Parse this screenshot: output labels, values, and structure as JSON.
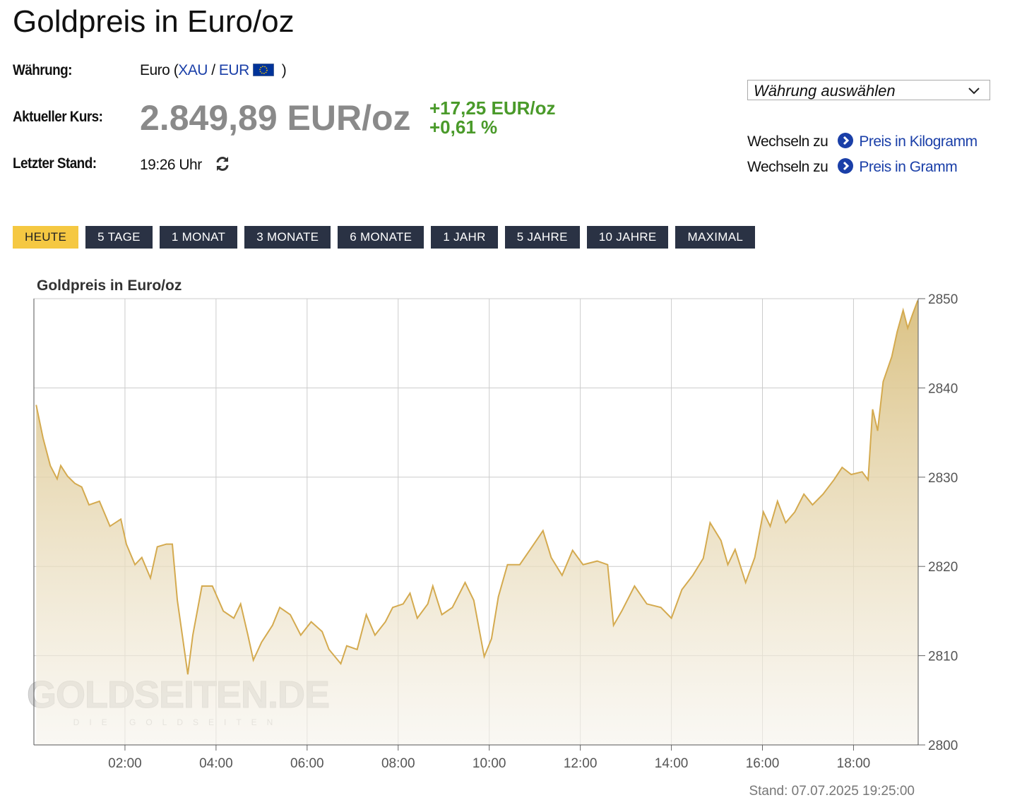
{
  "header": {
    "title": "Goldpreis in Euro/oz"
  },
  "info": {
    "currency_label": "Währung:",
    "currency_name": "Euro",
    "paren_open": "(",
    "currency_base": "XAU",
    "separator": "/",
    "currency_quote": "EUR",
    "paren_close": ")",
    "price_label": "Aktueller Kurs:",
    "price": "2.849,89 EUR/oz",
    "change_abs": "+17,25 EUR/oz",
    "change_pct": "+0,61 %",
    "time_label": "Letzter Stand:",
    "time": "19:26 Uhr"
  },
  "side": {
    "select": "Währung auswählen",
    "switch": [
      {
        "prefix": "Wechseln zu",
        "link": "Preis in Kilogramm"
      },
      {
        "prefix": "Wechseln zu",
        "link": "Preis in Gramm"
      }
    ]
  },
  "tabs": [
    "HEUTE",
    "5 TAGE",
    "1 MONAT",
    "3 MONATE",
    "6 MONATE",
    "1 JAHR",
    "5 JAHRE",
    "10 JAHRE",
    "MAXIMAL"
  ],
  "chart_data": {
    "type": "area",
    "title": "Goldpreis in Euro/oz",
    "footer": "Stand: 07.07.2025 19:25:00",
    "watermark": "GOLDSEITEN.DE",
    "watermark_sub": "DIE GOLDSEITEN",
    "x": [
      0.05,
      0.2,
      0.36,
      0.51,
      0.59,
      0.74,
      0.9,
      1.05,
      1.21,
      1.44,
      1.67,
      1.91,
      2.03,
      2.22,
      2.37,
      2.56,
      2.71,
      2.91,
      3.04,
      3.15,
      3.27,
      3.38,
      3.49,
      3.69,
      3.92,
      4.16,
      4.39,
      4.54,
      4.7,
      4.82,
      5.0,
      5.24,
      5.4,
      5.63,
      5.86,
      6.09,
      6.33,
      6.48,
      6.74,
      6.87,
      7.1,
      7.3,
      7.49,
      7.72,
      7.88,
      8.11,
      8.26,
      8.42,
      8.65,
      8.76,
      8.96,
      9.19,
      9.47,
      9.66,
      9.89,
      10.05,
      10.2,
      10.4,
      10.67,
      10.9,
      11.18,
      11.36,
      11.6,
      11.83,
      12.06,
      12.37,
      12.6,
      12.73,
      12.91,
      13.19,
      13.46,
      13.77,
      14.0,
      14.23,
      14.47,
      14.7,
      14.85,
      15.09,
      15.24,
      15.4,
      15.63,
      15.83,
      16.02,
      16.17,
      16.33,
      16.51,
      16.71,
      16.91,
      17.1,
      17.33,
      17.57,
      17.75,
      17.95,
      18.19,
      18.32,
      18.42,
      18.53,
      18.65,
      18.84,
      18.96,
      19.09,
      19.19,
      19.3,
      19.41
    ],
    "series": [
      {
        "name": "Goldpreis",
        "color": "#d4aa4f",
        "values": [
          2838.1,
          2834.4,
          2831.3,
          2829.8,
          2831.3,
          2830.1,
          2829.3,
          2828.9,
          2826.9,
          2827.3,
          2824.5,
          2825.3,
          2822.5,
          2820.2,
          2821,
          2818.7,
          2822.2,
          2822.5,
          2822.5,
          2816.2,
          2811.9,
          2807.9,
          2812.3,
          2817.8,
          2817.8,
          2815,
          2814.2,
          2815.8,
          2812.3,
          2809.5,
          2811.5,
          2813.4,
          2815.4,
          2814.6,
          2812.3,
          2813.8,
          2812.7,
          2810.7,
          2809.1,
          2811.1,
          2810.7,
          2814.6,
          2812.3,
          2813.8,
          2815.4,
          2815.8,
          2817,
          2814.2,
          2815.8,
          2817.8,
          2814.6,
          2815.4,
          2818.2,
          2816.2,
          2809.9,
          2811.9,
          2816.6,
          2820.2,
          2820.2,
          2821.9,
          2824,
          2821,
          2819,
          2821.8,
          2820.2,
          2820.6,
          2820.2,
          2813.4,
          2815,
          2817.8,
          2815.8,
          2815.4,
          2814.2,
          2817.4,
          2819,
          2820.9,
          2824.9,
          2822.9,
          2820.2,
          2821.9,
          2818.2,
          2821,
          2826.1,
          2824.5,
          2827.3,
          2824.9,
          2826.1,
          2828.1,
          2826.9,
          2828.1,
          2829.7,
          2831.1,
          2830.3,
          2830.6,
          2829.7,
          2837.6,
          2835.2,
          2840.7,
          2843.5,
          2846.3,
          2848.7,
          2846.7,
          2848.3,
          2849.8
        ]
      }
    ],
    "xlim": [
      0,
      19.42
    ],
    "xticks": [
      {
        "value": 2,
        "label": "02:00"
      },
      {
        "value": 4,
        "label": "04:00"
      },
      {
        "value": 6,
        "label": "06:00"
      },
      {
        "value": 8,
        "label": "08:00"
      },
      {
        "value": 10,
        "label": "10:00"
      },
      {
        "value": 12,
        "label": "12:00"
      },
      {
        "value": 14,
        "label": "14:00"
      },
      {
        "value": 16,
        "label": "16:00"
      },
      {
        "value": 18,
        "label": "18:00"
      }
    ],
    "ylim": [
      2800,
      2850
    ],
    "yticks": [
      2800,
      2810,
      2820,
      2830,
      2840,
      2850
    ],
    "grid": true
  }
}
